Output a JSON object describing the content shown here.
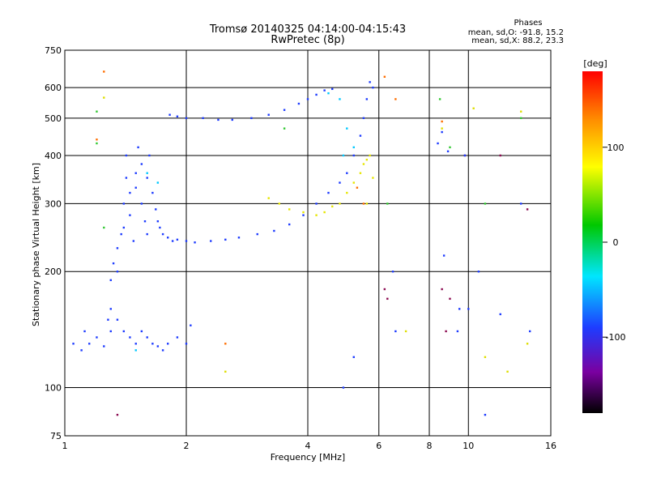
{
  "title": "Tromsø 20140325 04:14:00-04:15:43",
  "subtitle": "RwPretec (8p)",
  "stats": {
    "heading": "Phases",
    "line_o": "mean, sd,O: -91.8, 15.2",
    "line_x": "mean, sd,X:  88.2, 23.3"
  },
  "chart_data": {
    "type": "scatter",
    "xlabel": "Frequency [MHz]",
    "ylabel": "Stationary phase Virtual Height [km]",
    "xscale": "log",
    "yscale": "log",
    "xlim": [
      1,
      16
    ],
    "ylim": [
      75,
      750
    ],
    "xticks": [
      1,
      2,
      4,
      6,
      8,
      10,
      16
    ],
    "yticks": [
      75,
      100,
      200,
      300,
      400,
      500,
      600,
      750
    ],
    "colorbar": {
      "label": "[deg]",
      "range": [
        -180,
        180
      ],
      "ticks": [
        -100,
        0,
        100
      ]
    },
    "series": [
      {
        "color": "#1e3cff",
        "points": [
          [
            1.05,
            130
          ],
          [
            1.1,
            125
          ],
          [
            1.12,
            140
          ],
          [
            1.15,
            130
          ],
          [
            1.2,
            135
          ],
          [
            1.25,
            128
          ],
          [
            1.28,
            150
          ],
          [
            1.3,
            140
          ],
          [
            1.3,
            190
          ],
          [
            1.32,
            210
          ],
          [
            1.35,
            230
          ],
          [
            1.35,
            200
          ],
          [
            1.38,
            250
          ],
          [
            1.4,
            260
          ],
          [
            1.4,
            300
          ],
          [
            1.42,
            350
          ],
          [
            1.42,
            400
          ],
          [
            1.45,
            320
          ],
          [
            1.45,
            280
          ],
          [
            1.48,
            240
          ],
          [
            1.5,
            330
          ],
          [
            1.5,
            360
          ],
          [
            1.52,
            420
          ],
          [
            1.55,
            380
          ],
          [
            1.55,
            300
          ],
          [
            1.58,
            270
          ],
          [
            1.6,
            250
          ],
          [
            1.6,
            350
          ],
          [
            1.62,
            400
          ],
          [
            1.65,
            320
          ],
          [
            1.68,
            290
          ],
          [
            1.7,
            270
          ],
          [
            1.72,
            260
          ],
          [
            1.75,
            250
          ],
          [
            1.8,
            245
          ],
          [
            1.85,
            240
          ],
          [
            1.9,
            242
          ],
          [
            2.0,
            240
          ],
          [
            2.1,
            238
          ],
          [
            2.3,
            240
          ],
          [
            2.5,
            242
          ],
          [
            2.7,
            245
          ],
          [
            3.0,
            250
          ],
          [
            3.3,
            255
          ],
          [
            3.6,
            265
          ],
          [
            3.9,
            280
          ],
          [
            4.2,
            300
          ],
          [
            4.5,
            320
          ],
          [
            4.8,
            340
          ],
          [
            5.0,
            360
          ],
          [
            5.2,
            400
          ],
          [
            5.4,
            450
          ],
          [
            5.5,
            500
          ],
          [
            5.6,
            560
          ],
          [
            5.7,
            620
          ],
          [
            5.8,
            600
          ],
          [
            1.82,
            510
          ],
          [
            1.9,
            505
          ],
          [
            2.0,
            500
          ],
          [
            2.2,
            500
          ],
          [
            2.4,
            495
          ],
          [
            2.6,
            495
          ],
          [
            2.9,
            500
          ],
          [
            3.2,
            510
          ],
          [
            3.5,
            525
          ],
          [
            3.8,
            545
          ],
          [
            4.0,
            560
          ],
          [
            4.2,
            575
          ],
          [
            4.4,
            590
          ],
          [
            4.6,
            595
          ],
          [
            1.3,
            160
          ],
          [
            1.35,
            150
          ],
          [
            1.4,
            140
          ],
          [
            1.45,
            135
          ],
          [
            1.5,
            130
          ],
          [
            1.55,
            140
          ],
          [
            1.6,
            135
          ],
          [
            1.65,
            130
          ],
          [
            1.7,
            128
          ],
          [
            1.75,
            125
          ],
          [
            1.8,
            130
          ],
          [
            1.9,
            135
          ],
          [
            2.0,
            130
          ],
          [
            2.05,
            145
          ]
        ]
      },
      {
        "color": "#00c8ff",
        "points": [
          [
            1.6,
            360
          ],
          [
            1.7,
            340
          ],
          [
            1.5,
            125
          ],
          [
            4.5,
            580
          ],
          [
            4.8,
            560
          ],
          [
            5.0,
            470
          ],
          [
            5.2,
            420
          ],
          [
            4.9,
            400
          ]
        ]
      },
      {
        "color": "#e6e600",
        "points": [
          [
            3.2,
            310
          ],
          [
            3.4,
            300
          ],
          [
            3.6,
            290
          ],
          [
            3.9,
            285
          ],
          [
            4.2,
            280
          ],
          [
            4.4,
            285
          ],
          [
            4.6,
            295
          ],
          [
            4.8,
            300
          ],
          [
            5.0,
            320
          ],
          [
            5.2,
            340
          ],
          [
            5.4,
            360
          ],
          [
            5.5,
            380
          ],
          [
            5.6,
            390
          ],
          [
            5.7,
            400
          ],
          [
            5.8,
            350
          ],
          [
            5.6,
            300
          ]
        ]
      },
      {
        "color": "#ff6e00",
        "points": [
          [
            1.25,
            660
          ],
          [
            1.2,
            440
          ],
          [
            6.2,
            640
          ],
          [
            5.5,
            300
          ],
          [
            5.3,
            330
          ],
          [
            2.5,
            130
          ],
          [
            8.6,
            490
          ],
          [
            6.6,
            560
          ]
        ]
      },
      {
        "color": "#32c832",
        "points": [
          [
            1.2,
            520
          ],
          [
            1.2,
            430
          ],
          [
            1.25,
            260
          ],
          [
            3.5,
            470
          ],
          [
            6.3,
            300
          ],
          [
            8.5,
            560
          ],
          [
            9.0,
            420
          ],
          [
            11.0,
            300
          ],
          [
            13.5,
            500
          ]
        ]
      },
      {
        "color": "#8b0a50",
        "points": [
          [
            1.35,
            85
          ],
          [
            6.2,
            180
          ],
          [
            6.3,
            170
          ],
          [
            8.6,
            180
          ],
          [
            9.0,
            170
          ],
          [
            9.8,
            400
          ],
          [
            12.0,
            400
          ],
          [
            14.0,
            290
          ],
          [
            8.8,
            140
          ]
        ]
      },
      {
        "color": "#dede00",
        "points": [
          [
            1.25,
            565
          ],
          [
            2.5,
            110
          ],
          [
            7.0,
            140
          ],
          [
            8.6,
            470
          ],
          [
            10.3,
            530
          ],
          [
            11.0,
            120
          ],
          [
            12.5,
            110
          ],
          [
            13.5,
            520
          ],
          [
            14.0,
            130
          ]
        ]
      },
      {
        "color": "#1e3cff",
        "points": [
          [
            4.9,
            100
          ],
          [
            5.2,
            120
          ],
          [
            6.5,
            200
          ],
          [
            6.6,
            140
          ],
          [
            8.4,
            430
          ],
          [
            8.6,
            460
          ],
          [
            8.9,
            410
          ],
          [
            9.4,
            140
          ],
          [
            9.8,
            400
          ],
          [
            10.0,
            160
          ],
          [
            11.0,
            85
          ],
          [
            13.5,
            300
          ],
          [
            14.2,
            140
          ],
          [
            8.7,
            220
          ],
          [
            9.5,
            160
          ],
          [
            10.6,
            200
          ],
          [
            12.0,
            155
          ]
        ]
      }
    ]
  }
}
